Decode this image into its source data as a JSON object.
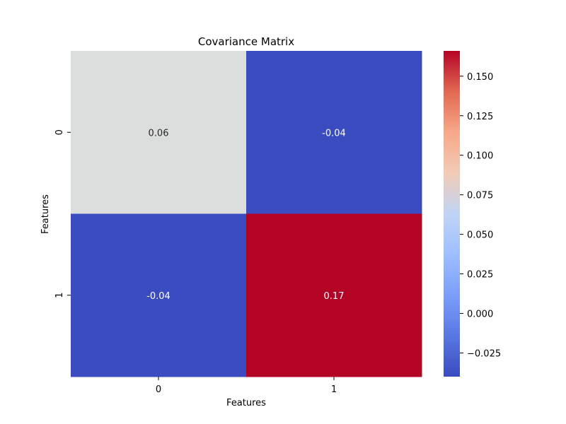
{
  "chart_data": {
    "type": "heatmap",
    "title": "Covariance Matrix",
    "xlabel": "Features",
    "ylabel": "Features",
    "x_categories": [
      "0",
      "1"
    ],
    "y_categories": [
      "0",
      "1"
    ],
    "values": [
      [
        0.06,
        -0.04
      ],
      [
        -0.04,
        0.17
      ]
    ],
    "cell_labels": [
      [
        "0.06",
        "-0.04"
      ],
      [
        "-0.04",
        "0.17"
      ]
    ],
    "colormap": "coolwarm",
    "cell_colors": [
      [
        "#dcdddd",
        "#3b4cc0"
      ],
      [
        "#3b4cc0",
        "#b40426"
      ]
    ],
    "colorbar": {
      "range": [
        -0.04,
        0.166
      ],
      "ticks": [
        -0.025,
        0.0,
        0.025,
        0.05,
        0.075,
        0.1,
        0.125,
        0.15
      ],
      "tick_labels": [
        "−0.025",
        "0.000",
        "0.025",
        "0.050",
        "0.075",
        "0.100",
        "0.125",
        "0.150"
      ]
    },
    "grid": false
  }
}
